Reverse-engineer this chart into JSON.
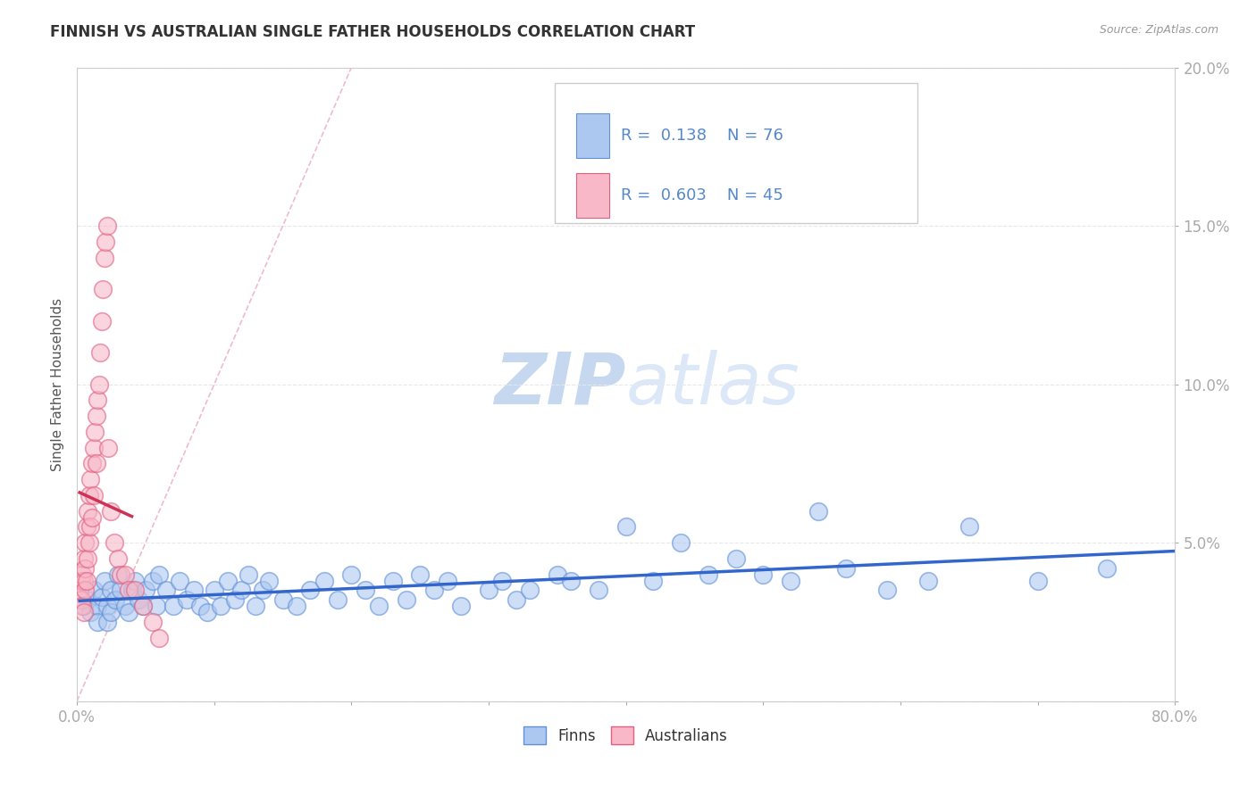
{
  "title": "FINNISH VS AUSTRALIAN SINGLE FATHER HOUSEHOLDS CORRELATION CHART",
  "source": "Source: ZipAtlas.com",
  "ylabel": "Single Father Households",
  "xlim": [
    0.0,
    0.8
  ],
  "ylim": [
    0.0,
    0.2
  ],
  "xticks": [
    0.0,
    0.1,
    0.2,
    0.3,
    0.4,
    0.5,
    0.6,
    0.7,
    0.8
  ],
  "xticklabels": [
    "0.0%",
    "",
    "",
    "",
    "",
    "",
    "",
    "",
    "80.0%"
  ],
  "yticks": [
    0.0,
    0.05,
    0.1,
    0.15,
    0.2
  ],
  "yticklabels": [
    "",
    "5.0%",
    "10.0%",
    "15.0%",
    "20.0%"
  ],
  "legend_r_blue": "0.138",
  "legend_n_blue": "76",
  "legend_r_pink": "0.603",
  "legend_n_pink": "45",
  "blue_fill": "#adc8f0",
  "blue_edge": "#6090d8",
  "pink_fill": "#f8b8c8",
  "pink_edge": "#e06080",
  "blue_line_color": "#3366cc",
  "pink_line_color": "#cc3355",
  "diag_color": "#e8a0b0",
  "watermark_zip": "ZIP",
  "watermark_atlas": "atlas",
  "watermark_color": "#dce8f8",
  "title_color": "#333333",
  "tick_color": "#5588cc",
  "bg_color": "#ffffff",
  "grid_color": "#e8e8e8",
  "finns_x": [
    0.005,
    0.008,
    0.01,
    0.012,
    0.015,
    0.015,
    0.018,
    0.02,
    0.022,
    0.022,
    0.025,
    0.025,
    0.028,
    0.03,
    0.032,
    0.035,
    0.038,
    0.04,
    0.042,
    0.045,
    0.048,
    0.05,
    0.055,
    0.058,
    0.06,
    0.065,
    0.07,
    0.075,
    0.08,
    0.085,
    0.09,
    0.095,
    0.1,
    0.105,
    0.11,
    0.115,
    0.12,
    0.125,
    0.13,
    0.135,
    0.14,
    0.15,
    0.16,
    0.17,
    0.18,
    0.19,
    0.2,
    0.21,
    0.22,
    0.23,
    0.24,
    0.25,
    0.26,
    0.27,
    0.28,
    0.3,
    0.31,
    0.32,
    0.33,
    0.35,
    0.36,
    0.38,
    0.4,
    0.42,
    0.44,
    0.46,
    0.48,
    0.5,
    0.52,
    0.54,
    0.56,
    0.59,
    0.62,
    0.65,
    0.7,
    0.75
  ],
  "finns_y": [
    0.03,
    0.032,
    0.028,
    0.035,
    0.03,
    0.025,
    0.033,
    0.038,
    0.03,
    0.025,
    0.035,
    0.028,
    0.032,
    0.04,
    0.035,
    0.03,
    0.028,
    0.035,
    0.038,
    0.032,
    0.03,
    0.035,
    0.038,
    0.03,
    0.04,
    0.035,
    0.03,
    0.038,
    0.032,
    0.035,
    0.03,
    0.028,
    0.035,
    0.03,
    0.038,
    0.032,
    0.035,
    0.04,
    0.03,
    0.035,
    0.038,
    0.032,
    0.03,
    0.035,
    0.038,
    0.032,
    0.04,
    0.035,
    0.03,
    0.038,
    0.032,
    0.04,
    0.035,
    0.038,
    0.03,
    0.035,
    0.038,
    0.032,
    0.035,
    0.04,
    0.038,
    0.035,
    0.055,
    0.038,
    0.05,
    0.04,
    0.045,
    0.04,
    0.038,
    0.06,
    0.042,
    0.035,
    0.038,
    0.055,
    0.038,
    0.042
  ],
  "aussies_x": [
    0.002,
    0.003,
    0.003,
    0.004,
    0.004,
    0.005,
    0.005,
    0.005,
    0.006,
    0.006,
    0.006,
    0.007,
    0.007,
    0.008,
    0.008,
    0.009,
    0.009,
    0.01,
    0.01,
    0.011,
    0.011,
    0.012,
    0.012,
    0.013,
    0.014,
    0.014,
    0.015,
    0.016,
    0.017,
    0.018,
    0.019,
    0.02,
    0.021,
    0.022,
    0.023,
    0.025,
    0.027,
    0.03,
    0.032,
    0.035,
    0.038,
    0.042,
    0.048,
    0.055,
    0.06
  ],
  "aussies_y": [
    0.035,
    0.038,
    0.032,
    0.04,
    0.03,
    0.045,
    0.038,
    0.028,
    0.05,
    0.035,
    0.042,
    0.055,
    0.038,
    0.06,
    0.045,
    0.065,
    0.05,
    0.07,
    0.055,
    0.075,
    0.058,
    0.08,
    0.065,
    0.085,
    0.09,
    0.075,
    0.095,
    0.1,
    0.11,
    0.12,
    0.13,
    0.14,
    0.145,
    0.15,
    0.08,
    0.06,
    0.05,
    0.045,
    0.04,
    0.04,
    0.035,
    0.035,
    0.03,
    0.025,
    0.02
  ],
  "pink_line_x0": 0.002,
  "pink_line_x1": 0.04,
  "blue_line_x0": 0.002,
  "blue_line_x1": 0.8
}
